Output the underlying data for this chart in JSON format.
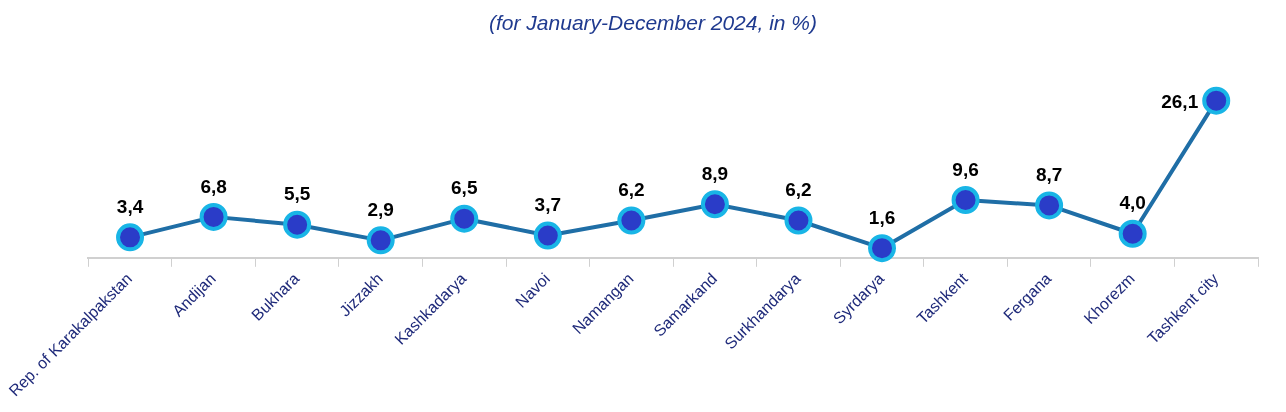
{
  "chart_data": {
    "type": "line",
    "subtitle": "(for January-December 2024, in %)",
    "categories": [
      "Rep. of Karakalpakstan",
      "Andijan",
      "Bukhara",
      "Jizzakh",
      "Kashkadarya",
      "Navoi",
      "Namangan",
      "Samarkand",
      "Surkhandarya",
      "Syrdarya",
      "Tashkent",
      "Fergana",
      "Khorezm",
      "Tashkent city"
    ],
    "series": [
      {
        "color": "#1f6ea6",
        "values": [
          3.4,
          6.8,
          5.5,
          2.9,
          6.5,
          3.7,
          6.2,
          8.9,
          6.2,
          1.6,
          9.6,
          8.7,
          4.0,
          26.1
        ],
        "value_labels": [
          "3,4",
          "6,8",
          "5,5",
          "2,9",
          "6,5",
          "3,7",
          "6,2",
          "8,9",
          "6,2",
          "1,6",
          "9,6",
          "8,7",
          "4,0",
          "26,1"
        ]
      }
    ],
    "marker": "circle",
    "line_style": "solid",
    "grid": false,
    "legend": false
  }
}
